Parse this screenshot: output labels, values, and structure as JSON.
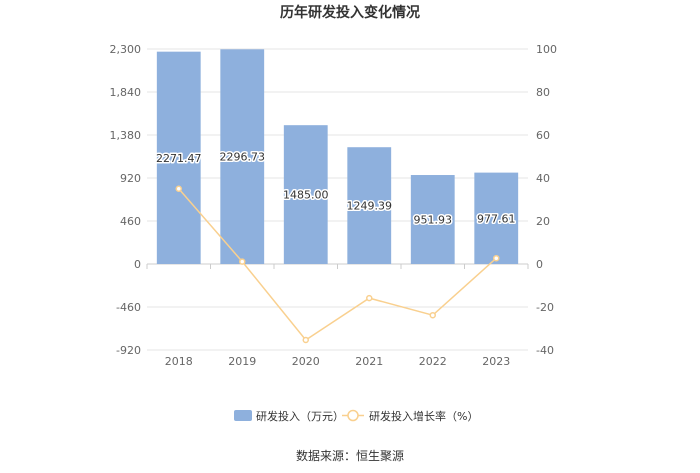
{
  "chart_data": {
    "type": "bar",
    "title": "历年研发投入变化情况",
    "categories": [
      "2018",
      "2019",
      "2020",
      "2021",
      "2022",
      "2023"
    ],
    "series": [
      {
        "name": "研发投入（万元）",
        "type": "bar",
        "axis": "left",
        "color": "#8eb0dd",
        "values": [
          2271.47,
          2296.73,
          1485.0,
          1249.39,
          951.93,
          977.61
        ],
        "labels": [
          "2271.47",
          "2296.73",
          "1485.00",
          "1249.39",
          "951.93",
          "977.61"
        ]
      },
      {
        "name": "研发投入增长率（%）",
        "type": "line",
        "axis": "right",
        "color": "#f9d08f",
        "values": [
          35.0,
          1.11,
          -35.34,
          -15.87,
          -23.81,
          2.7
        ]
      }
    ],
    "y_left": {
      "ylim": [
        -920,
        2300
      ],
      "ticks": [
        2300,
        1840,
        1380,
        920,
        460,
        0,
        -460,
        -920
      ],
      "tick_labels": [
        "2,300",
        "1,840",
        "1,380",
        "920",
        "460",
        "0",
        "-460",
        "-920"
      ]
    },
    "y_right": {
      "ylim": [
        -40,
        100
      ],
      "ticks": [
        100,
        80,
        60,
        40,
        20,
        0,
        -20,
        -40
      ],
      "tick_labels": [
        "100",
        "80",
        "60",
        "40",
        "20",
        "0",
        "-20",
        "-40"
      ]
    },
    "grid": true,
    "legend_position": "bottom-center"
  },
  "source_text": "数据来源：恒生聚源"
}
